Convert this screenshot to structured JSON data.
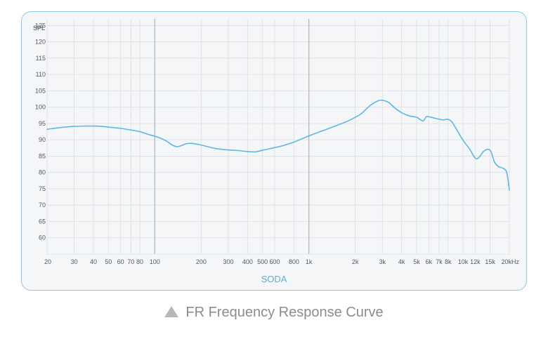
{
  "chart_data": {
    "type": "line",
    "ylabel": "SPL",
    "xlabel": "SODA",
    "x_unit_suffix": "Hz",
    "x_scale": "log",
    "xlim": [
      20,
      20000
    ],
    "ylim": [
      55,
      127
    ],
    "y_ticks": [
      60,
      65,
      70,
      75,
      80,
      85,
      90,
      95,
      100,
      105,
      110,
      115,
      120,
      125
    ],
    "x_ticks": [
      {
        "value": 20,
        "label": "20"
      },
      {
        "value": 30,
        "label": "30"
      },
      {
        "value": 40,
        "label": "40"
      },
      {
        "value": 50,
        "label": "50"
      },
      {
        "value": 60,
        "label": "60"
      },
      {
        "value": 70,
        "label": "70"
      },
      {
        "value": 80,
        "label": "80"
      },
      {
        "value": 100,
        "label": "100"
      },
      {
        "value": 200,
        "label": "200"
      },
      {
        "value": 300,
        "label": "300"
      },
      {
        "value": 400,
        "label": "400"
      },
      {
        "value": 500,
        "label": "500"
      },
      {
        "value": 600,
        "label": "600"
      },
      {
        "value": 800,
        "label": "800"
      },
      {
        "value": 1000,
        "label": "1k"
      },
      {
        "value": 2000,
        "label": "2k"
      },
      {
        "value": 3000,
        "label": "3k"
      },
      {
        "value": 4000,
        "label": "4k"
      },
      {
        "value": 5000,
        "label": "5k"
      },
      {
        "value": 6000,
        "label": "6k"
      },
      {
        "value": 7000,
        "label": "7k"
      },
      {
        "value": 8000,
        "label": "8k"
      },
      {
        "value": 10000,
        "label": "10k"
      },
      {
        "value": 12000,
        "label": "12k"
      },
      {
        "value": 15000,
        "label": "15k"
      },
      {
        "value": 20000,
        "label": "20kHz"
      }
    ],
    "major_x_gridlines": [
      100,
      1000
    ],
    "grid": true,
    "series": [
      {
        "color": "#5fb7e6",
        "points": [
          [
            20,
            93.2
          ],
          [
            25,
            93.8
          ],
          [
            30,
            94.1
          ],
          [
            35,
            94.2
          ],
          [
            40,
            94.2
          ],
          [
            45,
            94.1
          ],
          [
            50,
            93.9
          ],
          [
            60,
            93.5
          ],
          [
            70,
            93.0
          ],
          [
            80,
            92.5
          ],
          [
            90,
            91.7
          ],
          [
            100,
            91.1
          ],
          [
            110,
            90.4
          ],
          [
            120,
            89.5
          ],
          [
            130,
            88.4
          ],
          [
            140,
            87.9
          ],
          [
            150,
            88.3
          ],
          [
            160,
            88.8
          ],
          [
            175,
            88.9
          ],
          [
            200,
            88.4
          ],
          [
            250,
            87.3
          ],
          [
            300,
            86.9
          ],
          [
            350,
            86.7
          ],
          [
            400,
            86.4
          ],
          [
            450,
            86.3
          ],
          [
            500,
            86.8
          ],
          [
            600,
            87.6
          ],
          [
            700,
            88.4
          ],
          [
            800,
            89.3
          ],
          [
            1000,
            91.2
          ],
          [
            1200,
            92.6
          ],
          [
            1500,
            94.3
          ],
          [
            1800,
            95.8
          ],
          [
            2000,
            96.9
          ],
          [
            2200,
            98.1
          ],
          [
            2500,
            100.5
          ],
          [
            2800,
            101.9
          ],
          [
            3000,
            102.1
          ],
          [
            3300,
            101.4
          ],
          [
            3600,
            99.8
          ],
          [
            4000,
            98.3
          ],
          [
            4500,
            97.3
          ],
          [
            5000,
            96.9
          ],
          [
            5500,
            95.8
          ],
          [
            5800,
            97.1
          ],
          [
            6200,
            96.9
          ],
          [
            6600,
            96.6
          ],
          [
            7000,
            96.3
          ],
          [
            7500,
            96.1
          ],
          [
            8000,
            96.3
          ],
          [
            8500,
            95.4
          ],
          [
            9000,
            93.5
          ],
          [
            10000,
            89.9
          ],
          [
            11000,
            87.3
          ],
          [
            12000,
            84.4
          ],
          [
            12700,
            84.6
          ],
          [
            13500,
            86.3
          ],
          [
            14500,
            87.1
          ],
          [
            15200,
            86.4
          ],
          [
            16000,
            83.2
          ],
          [
            17000,
            81.8
          ],
          [
            18000,
            81.4
          ],
          [
            19000,
            80.6
          ],
          [
            19500,
            78.5
          ],
          [
            20000,
            74.6
          ]
        ]
      }
    ]
  },
  "caption": "FR Frequency Response Curve",
  "colors": {
    "curve": "#5fb7e6",
    "frame": "#8ec8ea",
    "background": "#f4f6f8",
    "grid_minor": "#dcdfe2",
    "grid_major": "#b3b7bb",
    "axis_text": "#555a60",
    "series_label": "#5aaedc"
  }
}
